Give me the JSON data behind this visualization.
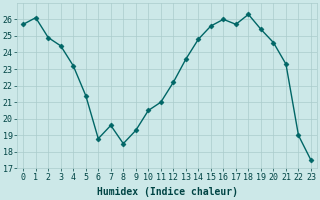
{
  "x": [
    0,
    1,
    2,
    3,
    4,
    5,
    6,
    7,
    8,
    9,
    10,
    11,
    12,
    13,
    14,
    15,
    16,
    17,
    18,
    19,
    20,
    21,
    22,
    23
  ],
  "y": [
    25.7,
    26.1,
    24.9,
    24.4,
    23.2,
    21.4,
    18.8,
    19.6,
    18.5,
    19.3,
    20.5,
    21.0,
    22.2,
    23.6,
    24.8,
    25.6,
    26.0,
    25.7,
    26.3,
    25.4,
    24.6,
    23.3,
    19.0,
    17.5
  ],
  "line_color": "#006666",
  "marker": "D",
  "marker_size": 2.5,
  "bg_color": "#cce8e8",
  "grid_color": "#aacccc",
  "xlabel": "Humidex (Indice chaleur)",
  "ylim": [
    17,
    27
  ],
  "xlim": [
    -0.5,
    23.5
  ],
  "yticks": [
    17,
    18,
    19,
    20,
    21,
    22,
    23,
    24,
    25,
    26
  ],
  "xticks": [
    0,
    1,
    2,
    3,
    4,
    5,
    6,
    7,
    8,
    9,
    10,
    11,
    12,
    13,
    14,
    15,
    16,
    17,
    18,
    19,
    20,
    21,
    22,
    23
  ],
  "tick_color": "#004444",
  "label_color": "#004444",
  "font_size": 6,
  "xlabel_fontsize": 7,
  "linewidth": 1.0
}
